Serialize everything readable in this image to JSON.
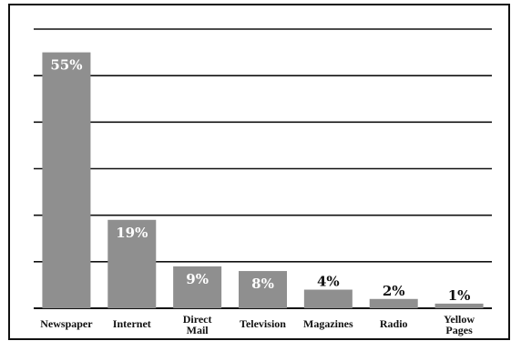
{
  "chart_data": {
    "type": "bar",
    "categories": [
      "Newspaper",
      "Internet",
      "Direct Mail",
      "Television",
      "Magazines",
      "Radio",
      "Yellow Pages"
    ],
    "values": [
      55,
      19,
      9,
      8,
      4,
      2,
      1
    ],
    "data_labels": [
      "55%",
      "19%",
      "9%",
      "8%",
      "4%",
      "2%",
      "1%"
    ],
    "ylim": [
      0,
      60
    ],
    "y_tick_step": 10,
    "grid": true,
    "legend": "none",
    "colors": {
      "bar": "#8f8f8f",
      "grid": "#111111",
      "frame": "#111111",
      "label_inside": "#ffffff",
      "label_outside": "#111111"
    }
  }
}
